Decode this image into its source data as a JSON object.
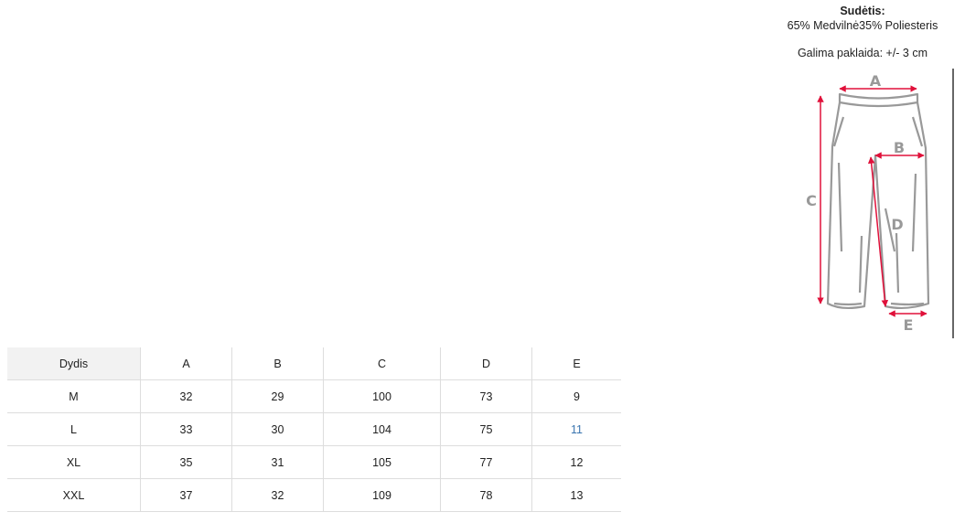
{
  "composition": {
    "label": "Sudėtis:",
    "value": "65% Medvilnė35% Poliesteris"
  },
  "tolerance": "Galima paklaida: +/- 3 cm",
  "diagram": {
    "labels": [
      "A",
      "B",
      "C",
      "D",
      "E"
    ],
    "accent": "#e0103a"
  },
  "table": {
    "headers": [
      "Dydis",
      "A",
      "B",
      "C",
      "D",
      "E"
    ],
    "rows": [
      [
        "M",
        "32",
        "29",
        "100",
        "73",
        "9"
      ],
      [
        "L",
        "33",
        "30",
        "104",
        "75",
        "11"
      ],
      [
        "XL",
        "35",
        "31",
        "105",
        "77",
        "12"
      ],
      [
        "XXL",
        "37",
        "32",
        "109",
        "78",
        "13"
      ]
    ],
    "highlight_color": "#3a75b0"
  }
}
